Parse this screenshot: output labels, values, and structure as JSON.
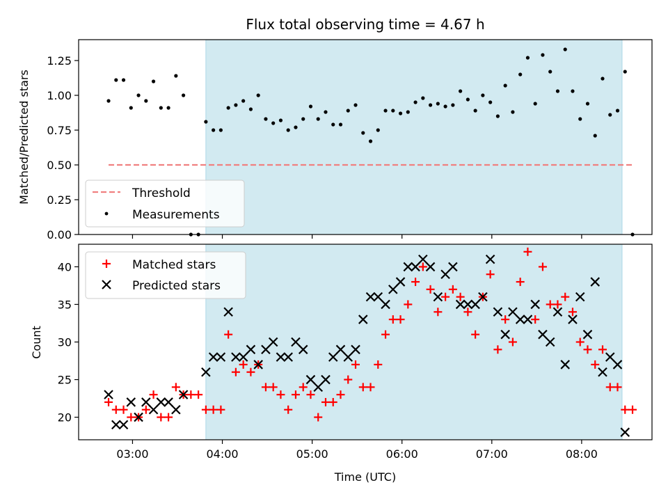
{
  "chart_data": [
    {
      "type": "scatter",
      "title": "Flux total observing time = 4.67 h",
      "ylabel": "Matched/Predicted stars",
      "ylim": [
        0.0,
        1.4
      ],
      "yticks": [
        "0.00",
        "0.25",
        "0.50",
        "0.75",
        "1.00",
        "1.25"
      ],
      "xlim": [
        "02:24",
        "08:47"
      ],
      "shaded_span": {
        "start": "03:49",
        "end": "08:27",
        "color": "#add8e6"
      },
      "legend": {
        "placement": "lower-left",
        "entries": [
          "Threshold",
          "Measurements"
        ]
      },
      "threshold": {
        "name": "Threshold",
        "value": 0.5,
        "x_start": "02:44",
        "x_end": "08:35",
        "style": "dashed",
        "color": "#f08080"
      },
      "series": [
        {
          "name": "Measurements",
          "marker": "dot",
          "color": "#000000",
          "points": [
            [
              "02:44",
              0.96
            ],
            [
              "02:49",
              1.11
            ],
            [
              "02:54",
              1.11
            ],
            [
              "02:59",
              0.91
            ],
            [
              "03:04",
              1.0
            ],
            [
              "03:09",
              0.96
            ],
            [
              "03:14",
              1.1
            ],
            [
              "03:19",
              0.91
            ],
            [
              "03:24",
              0.91
            ],
            [
              "03:29",
              1.14
            ],
            [
              "03:34",
              1.0
            ],
            [
              "03:39",
              0.0
            ],
            [
              "03:44",
              0.0
            ],
            [
              "03:49",
              0.81
            ],
            [
              "03:54",
              0.75
            ],
            [
              "03:59",
              0.75
            ],
            [
              "04:04",
              0.91
            ],
            [
              "04:09",
              0.93
            ],
            [
              "04:14",
              0.96
            ],
            [
              "04:19",
              0.9
            ],
            [
              "04:24",
              1.0
            ],
            [
              "04:29",
              0.83
            ],
            [
              "04:34",
              0.8
            ],
            [
              "04:39",
              0.82
            ],
            [
              "04:44",
              0.75
            ],
            [
              "04:49",
              0.77
            ],
            [
              "04:54",
              0.83
            ],
            [
              "04:59",
              0.92
            ],
            [
              "05:04",
              0.83
            ],
            [
              "05:09",
              0.88
            ],
            [
              "05:14",
              0.79
            ],
            [
              "05:19",
              0.79
            ],
            [
              "05:24",
              0.89
            ],
            [
              "05:29",
              0.93
            ],
            [
              "05:34",
              0.73
            ],
            [
              "05:39",
              0.67
            ],
            [
              "05:44",
              0.75
            ],
            [
              "05:49",
              0.89
            ],
            [
              "05:54",
              0.89
            ],
            [
              "05:59",
              0.87
            ],
            [
              "06:04",
              0.88
            ],
            [
              "06:09",
              0.95
            ],
            [
              "06:14",
              0.98
            ],
            [
              "06:19",
              0.93
            ],
            [
              "06:24",
              0.94
            ],
            [
              "06:29",
              0.92
            ],
            [
              "06:34",
              0.93
            ],
            [
              "06:39",
              1.03
            ],
            [
              "06:44",
              0.97
            ],
            [
              "06:49",
              0.89
            ],
            [
              "06:54",
              1.0
            ],
            [
              "06:59",
              0.95
            ],
            [
              "07:04",
              0.85
            ],
            [
              "07:09",
              1.07
            ],
            [
              "07:14",
              0.88
            ],
            [
              "07:19",
              1.15
            ],
            [
              "07:24",
              1.27
            ],
            [
              "07:29",
              0.94
            ],
            [
              "07:34",
              1.29
            ],
            [
              "07:39",
              1.17
            ],
            [
              "07:44",
              1.03
            ],
            [
              "07:49",
              1.33
            ],
            [
              "07:54",
              1.03
            ],
            [
              "07:59",
              0.83
            ],
            [
              "08:04",
              0.94
            ],
            [
              "08:09",
              0.71
            ],
            [
              "08:14",
              1.12
            ],
            [
              "08:19",
              0.86
            ],
            [
              "08:24",
              0.89
            ],
            [
              "08:29",
              1.17
            ],
            [
              "08:34",
              0.0
            ]
          ]
        }
      ]
    },
    {
      "type": "scatter",
      "xlabel": "Time (UTC)",
      "ylabel": "Count",
      "ylim": [
        17,
        43
      ],
      "yticks": [
        "20",
        "25",
        "30",
        "35",
        "40"
      ],
      "xlim": [
        "02:24",
        "08:47"
      ],
      "xticks": [
        "03:00",
        "04:00",
        "05:00",
        "06:00",
        "07:00",
        "08:00"
      ],
      "shaded_span": {
        "start": "03:49",
        "end": "08:27",
        "color": "#add8e6"
      },
      "legend": {
        "placement": "top-left",
        "entries": [
          "Matched stars",
          "Predicted stars"
        ]
      },
      "series": [
        {
          "name": "Matched stars",
          "marker": "plus",
          "color": "#ff0000",
          "points": [
            [
              "02:44",
              22
            ],
            [
              "02:49",
              21
            ],
            [
              "02:54",
              21
            ],
            [
              "02:59",
              20
            ],
            [
              "03:04",
              20
            ],
            [
              "03:09",
              21
            ],
            [
              "03:14",
              23
            ],
            [
              "03:19",
              20
            ],
            [
              "03:24",
              20
            ],
            [
              "03:29",
              24
            ],
            [
              "03:34",
              23
            ],
            [
              "03:39",
              23
            ],
            [
              "03:44",
              23
            ],
            [
              "03:49",
              21
            ],
            [
              "03:54",
              21
            ],
            [
              "03:59",
              21
            ],
            [
              "04:04",
              31
            ],
            [
              "04:09",
              26
            ],
            [
              "04:14",
              27
            ],
            [
              "04:19",
              26
            ],
            [
              "04:24",
              27
            ],
            [
              "04:29",
              24
            ],
            [
              "04:34",
              24
            ],
            [
              "04:39",
              23
            ],
            [
              "04:44",
              21
            ],
            [
              "04:49",
              23
            ],
            [
              "04:54",
              24
            ],
            [
              "04:59",
              23
            ],
            [
              "05:04",
              20
            ],
            [
              "05:09",
              22
            ],
            [
              "05:14",
              22
            ],
            [
              "05:19",
              23
            ],
            [
              "05:24",
              25
            ],
            [
              "05:29",
              27
            ],
            [
              "05:34",
              24
            ],
            [
              "05:39",
              24
            ],
            [
              "05:44",
              27
            ],
            [
              "05:49",
              31
            ],
            [
              "05:54",
              33
            ],
            [
              "05:59",
              33
            ],
            [
              "06:04",
              35
            ],
            [
              "06:09",
              38
            ],
            [
              "06:14",
              40
            ],
            [
              "06:19",
              37
            ],
            [
              "06:24",
              34
            ],
            [
              "06:29",
              36
            ],
            [
              "06:34",
              37
            ],
            [
              "06:39",
              36
            ],
            [
              "06:44",
              34
            ],
            [
              "06:49",
              31
            ],
            [
              "06:54",
              36
            ],
            [
              "06:59",
              39
            ],
            [
              "07:04",
              29
            ],
            [
              "07:09",
              33
            ],
            [
              "07:14",
              30
            ],
            [
              "07:19",
              38
            ],
            [
              "07:24",
              42
            ],
            [
              "07:29",
              33
            ],
            [
              "07:34",
              40
            ],
            [
              "07:39",
              35
            ],
            [
              "07:44",
              35
            ],
            [
              "07:49",
              36
            ],
            [
              "07:54",
              34
            ],
            [
              "07:59",
              30
            ],
            [
              "08:04",
              29
            ],
            [
              "08:09",
              27
            ],
            [
              "08:14",
              29
            ],
            [
              "08:19",
              24
            ],
            [
              "08:24",
              24
            ],
            [
              "08:29",
              21
            ],
            [
              "08:34",
              21
            ]
          ]
        },
        {
          "name": "Predicted stars",
          "marker": "x",
          "color": "#000000",
          "points": [
            [
              "02:44",
              23
            ],
            [
              "02:49",
              19
            ],
            [
              "02:54",
              19
            ],
            [
              "02:59",
              22
            ],
            [
              "03:04",
              20
            ],
            [
              "03:09",
              22
            ],
            [
              "03:14",
              21
            ],
            [
              "03:19",
              22
            ],
            [
              "03:24",
              22
            ],
            [
              "03:29",
              21
            ],
            [
              "03:34",
              23
            ],
            [
              "03:49",
              26
            ],
            [
              "03:54",
              28
            ],
            [
              "03:59",
              28
            ],
            [
              "04:04",
              34
            ],
            [
              "04:09",
              28
            ],
            [
              "04:14",
              28
            ],
            [
              "04:19",
              29
            ],
            [
              "04:24",
              27
            ],
            [
              "04:29",
              29
            ],
            [
              "04:34",
              30
            ],
            [
              "04:39",
              28
            ],
            [
              "04:44",
              28
            ],
            [
              "04:49",
              30
            ],
            [
              "04:54",
              29
            ],
            [
              "04:59",
              25
            ],
            [
              "05:04",
              24
            ],
            [
              "05:09",
              25
            ],
            [
              "05:14",
              28
            ],
            [
              "05:19",
              29
            ],
            [
              "05:24",
              28
            ],
            [
              "05:29",
              29
            ],
            [
              "05:34",
              33
            ],
            [
              "05:39",
              36
            ],
            [
              "05:44",
              36
            ],
            [
              "05:49",
              35
            ],
            [
              "05:54",
              37
            ],
            [
              "05:59",
              38
            ],
            [
              "06:04",
              40
            ],
            [
              "06:09",
              40
            ],
            [
              "06:14",
              41
            ],
            [
              "06:19",
              40
            ],
            [
              "06:24",
              36
            ],
            [
              "06:29",
              39
            ],
            [
              "06:34",
              40
            ],
            [
              "06:39",
              35
            ],
            [
              "06:44",
              35
            ],
            [
              "06:49",
              35
            ],
            [
              "06:54",
              36
            ],
            [
              "06:59",
              41
            ],
            [
              "07:04",
              34
            ],
            [
              "07:09",
              31
            ],
            [
              "07:14",
              34
            ],
            [
              "07:19",
              33
            ],
            [
              "07:24",
              33
            ],
            [
              "07:29",
              35
            ],
            [
              "07:34",
              31
            ],
            [
              "07:39",
              30
            ],
            [
              "07:44",
              34
            ],
            [
              "07:49",
              27
            ],
            [
              "07:54",
              33
            ],
            [
              "07:59",
              36
            ],
            [
              "08:04",
              31
            ],
            [
              "08:09",
              38
            ],
            [
              "08:14",
              26
            ],
            [
              "08:19",
              28
            ],
            [
              "08:24",
              27
            ],
            [
              "08:29",
              18
            ]
          ]
        }
      ]
    }
  ]
}
